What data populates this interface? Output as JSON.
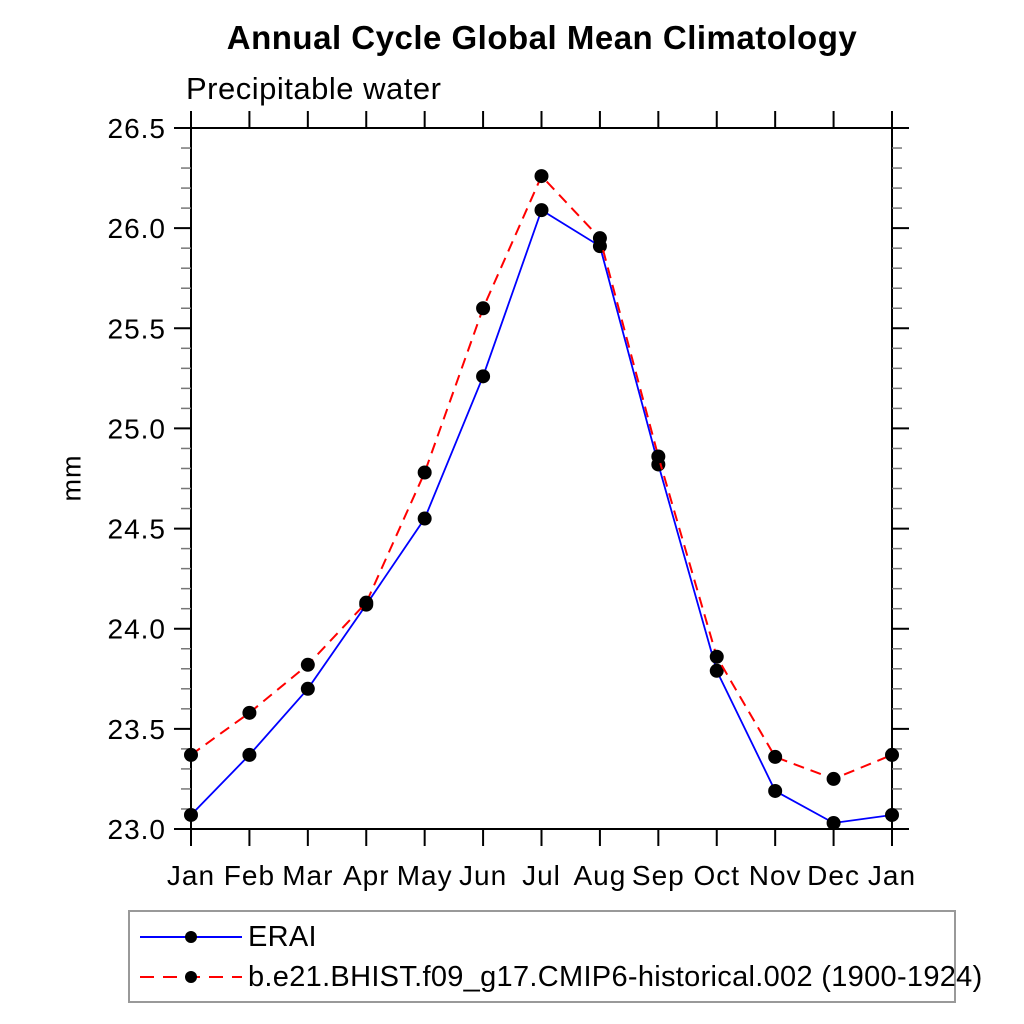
{
  "page": {
    "background": "#ffffff"
  },
  "chart_data": {
    "type": "line",
    "title": "Annual Cycle Global Mean Climatology",
    "subtitle": "Precipitable water",
    "ylabel": "mm",
    "xlabel": "",
    "categories": [
      "Jan",
      "Feb",
      "Mar",
      "Apr",
      "May",
      "Jun",
      "Jul",
      "Aug",
      "Sep",
      "Oct",
      "Nov",
      "Dec",
      "Jan"
    ],
    "ylim": [
      23.0,
      26.5
    ],
    "ytick_step": 0.5,
    "ytick_minor_step": 0.1,
    "ytick_labels": [
      "23.0",
      "23.5",
      "24.0",
      "24.5",
      "25.0",
      "25.5",
      "26.0",
      "26.5"
    ],
    "grid": false,
    "frame": "box-with-outward-ticks",
    "legend_position": "bottom-left-box",
    "axis_color": "#000000",
    "minor_tick_color": "#777777",
    "marker_color": "#000000",
    "series": [
      {
        "name": "ERAI",
        "color": "#0000ff",
        "line_style": "solid",
        "marker": "circle",
        "values": [
          23.07,
          23.37,
          23.7,
          24.12,
          24.55,
          25.26,
          26.09,
          25.91,
          24.82,
          23.79,
          23.19,
          23.03,
          23.07
        ]
      },
      {
        "name": "b.e21.BHIST.f09_g17.CMIP6-historical.002 (1900-1924)",
        "color": "#ff0000",
        "line_style": "dashed",
        "marker": "circle",
        "values": [
          23.37,
          23.58,
          23.82,
          24.13,
          24.78,
          25.6,
          26.26,
          25.95,
          24.86,
          23.86,
          23.36,
          23.25,
          23.37
        ]
      }
    ]
  }
}
